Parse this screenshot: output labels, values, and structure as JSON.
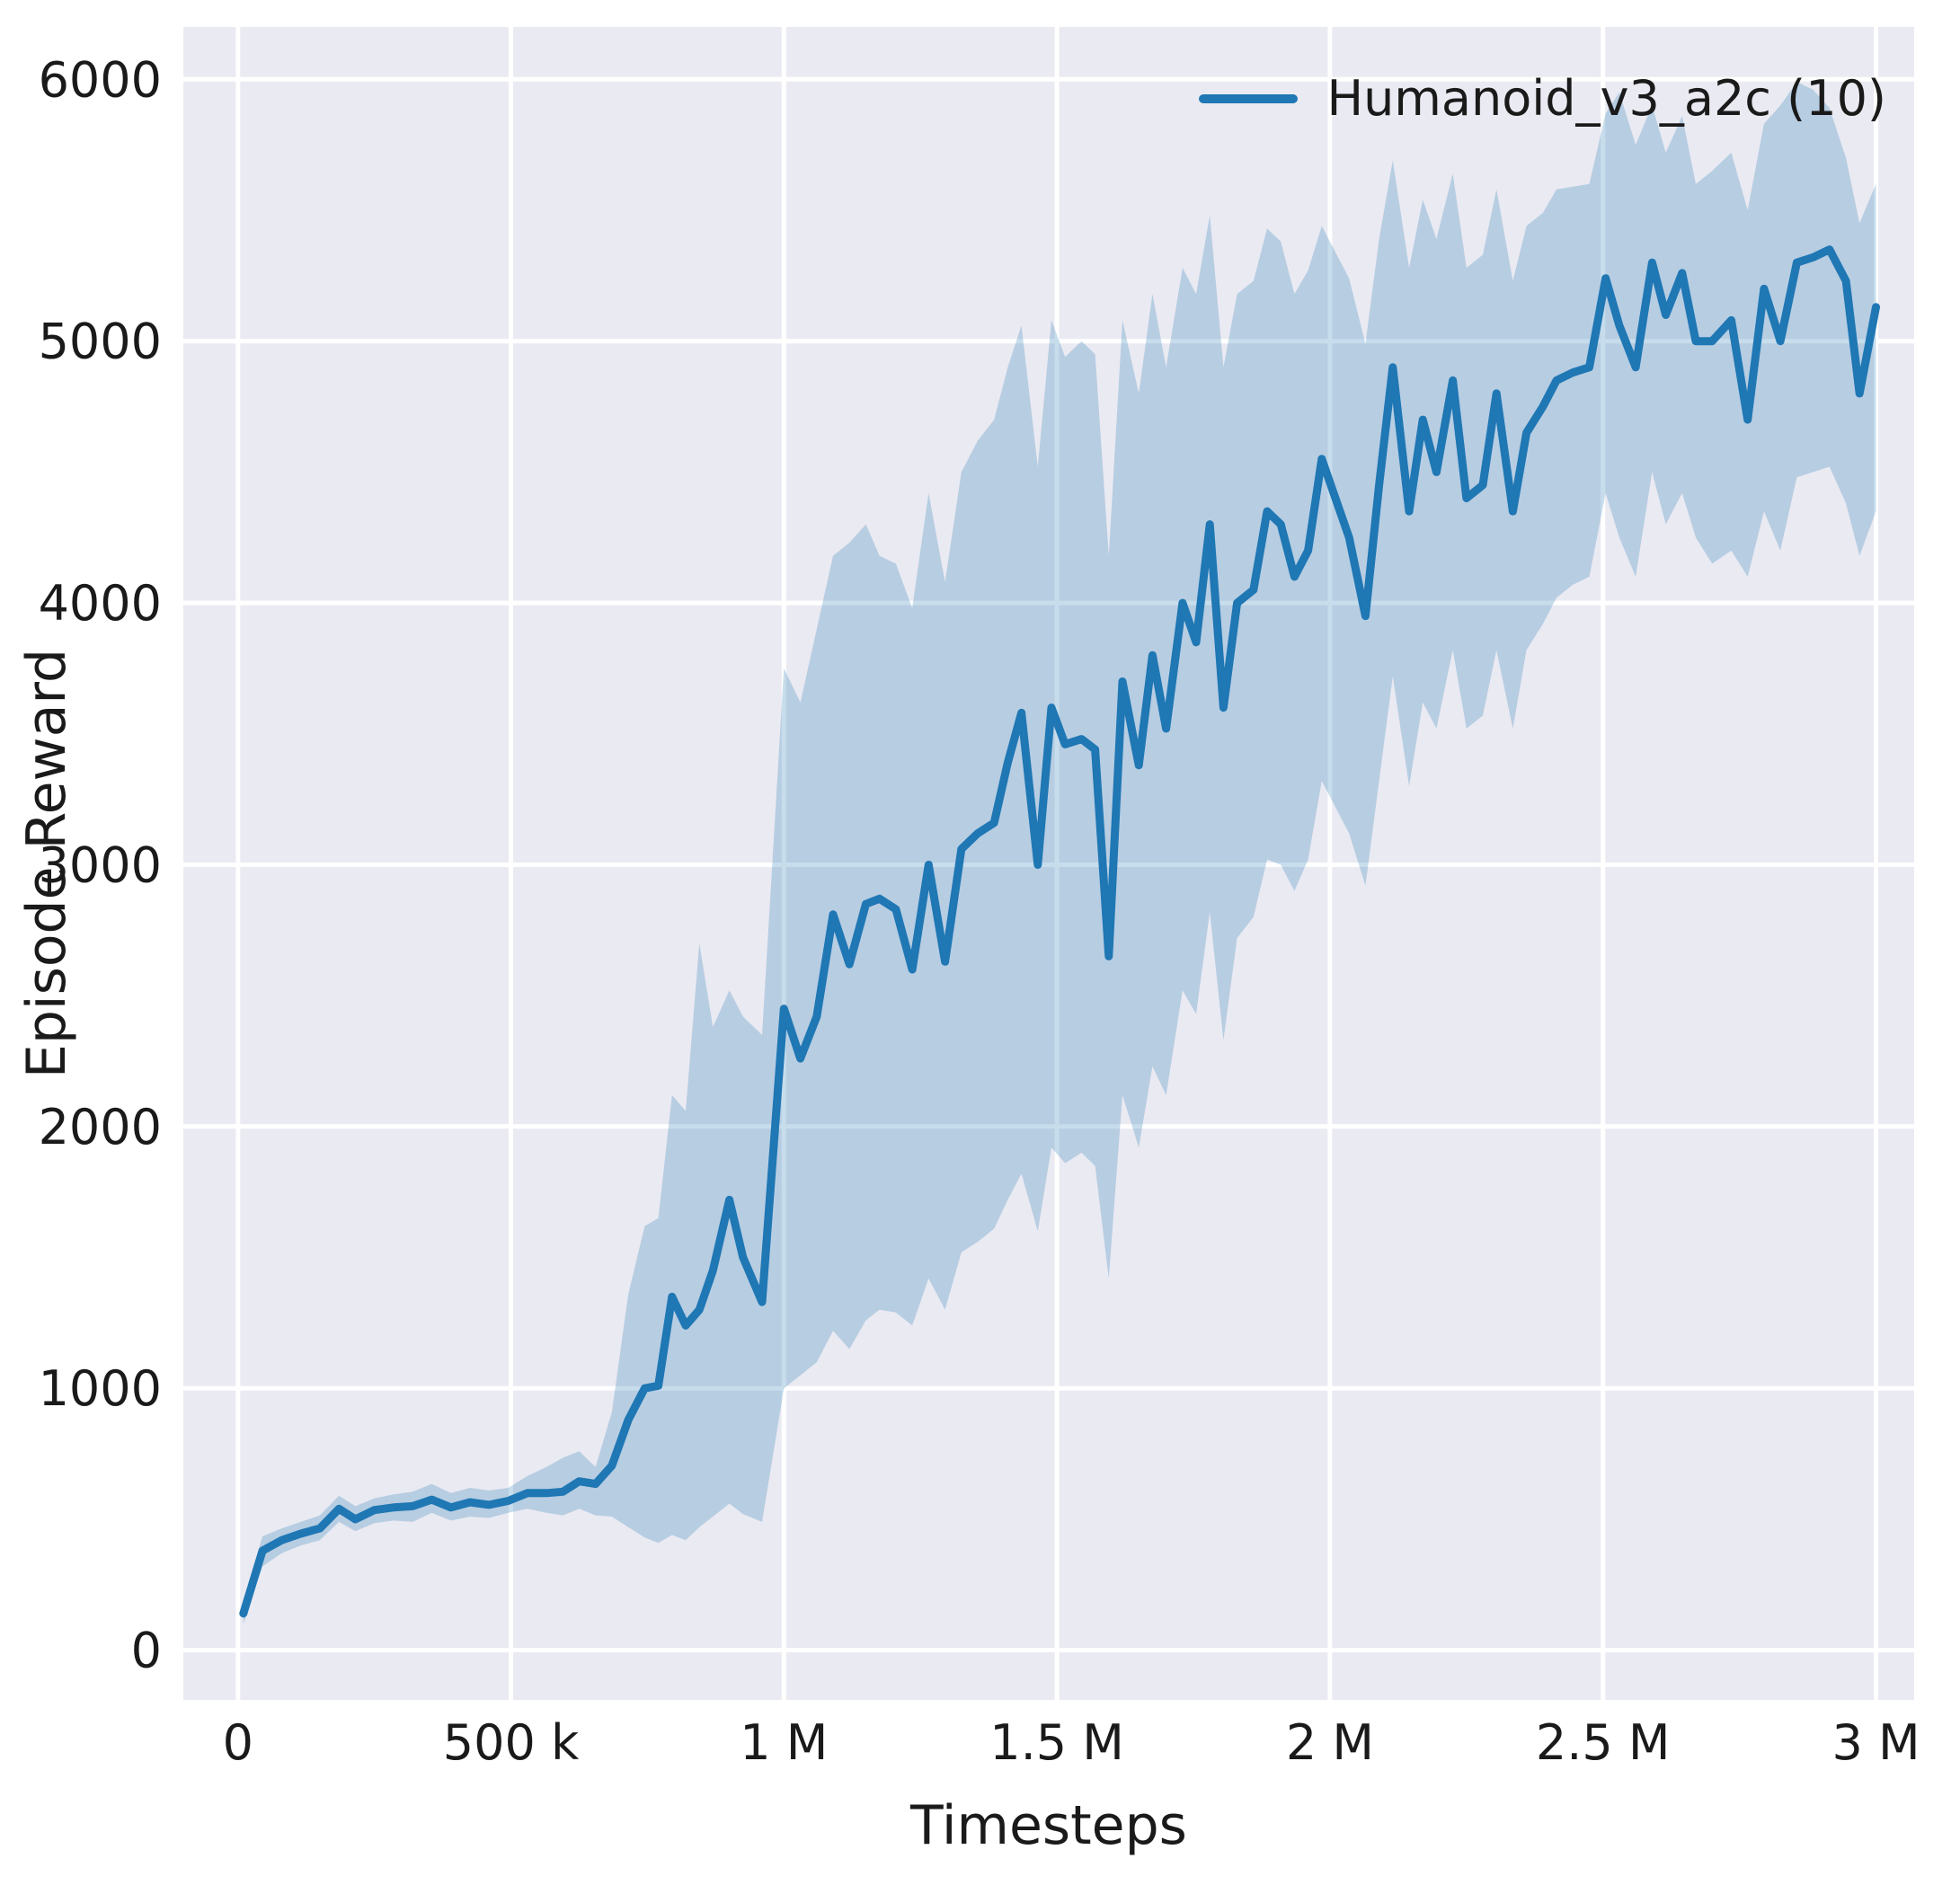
{
  "figure": {
    "background": "#ffffff",
    "plot_bg": "#eaeaf2",
    "grid_color": "#ffffff",
    "line_color": "#1f77b4",
    "band_color": "#1f77b4",
    "band_opacity": 0.25,
    "text_color": "#1a1a1a"
  },
  "chart_data": {
    "type": "line",
    "title": "",
    "xlabel": "Timesteps",
    "ylabel": "Episode Reward",
    "grid": true,
    "legend_position": "upper right",
    "legend": [
      {
        "label": "Humanoid_v3_a2c (10)",
        "color": "#1f77b4"
      }
    ],
    "xlim": [
      -100000,
      3070000
    ],
    "ylim": [
      -190,
      6200
    ],
    "x_ticks": {
      "values": [
        0,
        500000,
        1000000,
        1500000,
        2000000,
        2500000,
        3000000
      ],
      "labels": [
        "0",
        "500 k",
        "1 M",
        "1.5 M",
        "2 M",
        "2.5 M",
        "3 M"
      ]
    },
    "y_ticks": {
      "values": [
        0,
        1000,
        2000,
        3000,
        4000,
        5000,
        6000
      ],
      "labels": [
        "0",
        "1000",
        "2000",
        "3000",
        "4000",
        "5000",
        "6000"
      ]
    },
    "series": [
      {
        "name": "Humanoid_v3_a2c (10)",
        "point_format": [
          "x",
          "mean",
          "band_low",
          "band_high"
        ],
        "points": [
          [
            10000,
            140,
            100,
            190
          ],
          [
            45000,
            380,
            320,
            435
          ],
          [
            80000,
            420,
            370,
            465
          ],
          [
            115000,
            445,
            400,
            490
          ],
          [
            150000,
            465,
            420,
            515
          ],
          [
            185000,
            540,
            490,
            590
          ],
          [
            215000,
            500,
            455,
            550
          ],
          [
            250000,
            535,
            485,
            580
          ],
          [
            285000,
            545,
            495,
            595
          ],
          [
            320000,
            550,
            490,
            605
          ],
          [
            355000,
            575,
            525,
            635
          ],
          [
            390000,
            545,
            495,
            600
          ],
          [
            425000,
            565,
            510,
            620
          ],
          [
            460000,
            555,
            505,
            610
          ],
          [
            495000,
            570,
            525,
            620
          ],
          [
            530000,
            600,
            540,
            665
          ],
          [
            565000,
            600,
            525,
            700
          ],
          [
            595000,
            605,
            515,
            735
          ],
          [
            625000,
            645,
            540,
            760
          ],
          [
            655000,
            635,
            515,
            700
          ],
          [
            685000,
            705,
            510,
            910
          ],
          [
            715000,
            880,
            470,
            1360
          ],
          [
            745000,
            1000,
            430,
            1620
          ],
          [
            770000,
            1010,
            410,
            1650
          ],
          [
            795000,
            1350,
            440,
            2120
          ],
          [
            820000,
            1240,
            420,
            2060
          ],
          [
            845000,
            1300,
            470,
            2700
          ],
          [
            870000,
            1450,
            510,
            2380
          ],
          [
            900000,
            1720,
            560,
            2520
          ],
          [
            925000,
            1500,
            520,
            2420
          ],
          [
            960000,
            1330,
            490,
            2350
          ],
          [
            1000000,
            2450,
            1000,
            3750
          ],
          [
            1030000,
            2260,
            1050,
            3620
          ],
          [
            1060000,
            2420,
            1100,
            3900
          ],
          [
            1090000,
            2810,
            1220,
            4180
          ],
          [
            1120000,
            2620,
            1150,
            4230
          ],
          [
            1150000,
            2850,
            1260,
            4300
          ],
          [
            1175000,
            2870,
            1300,
            4180
          ],
          [
            1205000,
            2830,
            1290,
            4150
          ],
          [
            1235000,
            2600,
            1240,
            3980
          ],
          [
            1265000,
            3000,
            1420,
            4420
          ],
          [
            1295000,
            2630,
            1300,
            4080
          ],
          [
            1325000,
            3060,
            1520,
            4500
          ],
          [
            1355000,
            3120,
            1560,
            4620
          ],
          [
            1385000,
            3160,
            1610,
            4700
          ],
          [
            1410000,
            3390,
            1720,
            4900
          ],
          [
            1435000,
            3580,
            1820,
            5060
          ],
          [
            1465000,
            3000,
            1600,
            4520
          ],
          [
            1490000,
            3600,
            1920,
            5080
          ],
          [
            1515000,
            3460,
            1860,
            4940
          ],
          [
            1545000,
            3480,
            1900,
            5000
          ],
          [
            1570000,
            3440,
            1850,
            4950
          ],
          [
            1595000,
            2650,
            1420,
            4180
          ],
          [
            1620000,
            3700,
            2120,
            5080
          ],
          [
            1650000,
            3380,
            1920,
            4800
          ],
          [
            1675000,
            3800,
            2230,
            5180
          ],
          [
            1700000,
            3520,
            2120,
            4900
          ],
          [
            1730000,
            4000,
            2520,
            5280
          ],
          [
            1755000,
            3850,
            2430,
            5180
          ],
          [
            1780000,
            4300,
            2820,
            5480
          ],
          [
            1805000,
            3600,
            2330,
            4900
          ],
          [
            1830000,
            4000,
            2720,
            5180
          ],
          [
            1860000,
            4050,
            2800,
            5230
          ],
          [
            1885000,
            4350,
            3020,
            5430
          ],
          [
            1910000,
            4300,
            3000,
            5380
          ],
          [
            1935000,
            4100,
            2900,
            5180
          ],
          [
            1960000,
            4200,
            3020,
            5270
          ],
          [
            1985000,
            4550,
            3320,
            5440
          ],
          [
            2010000,
            4400,
            3220,
            5340
          ],
          [
            2035000,
            4250,
            3120,
            5240
          ],
          [
            2065000,
            3950,
            2920,
            4990
          ],
          [
            2090000,
            4450,
            3320,
            5390
          ],
          [
            2115000,
            4900,
            3720,
            5690
          ],
          [
            2145000,
            4350,
            3300,
            5280
          ],
          [
            2170000,
            4700,
            3620,
            5540
          ],
          [
            2195000,
            4500,
            3520,
            5390
          ],
          [
            2225000,
            4850,
            3820,
            5640
          ],
          [
            2250000,
            4400,
            3520,
            5280
          ],
          [
            2280000,
            4450,
            3570,
            5330
          ],
          [
            2305000,
            4800,
            3820,
            5580
          ],
          [
            2335000,
            4350,
            3520,
            5230
          ],
          [
            2360000,
            4650,
            3820,
            5440
          ],
          [
            2390000,
            4750,
            3920,
            5490
          ],
          [
            2415000,
            4850,
            4020,
            5580
          ],
          [
            2445000,
            4880,
            4070,
            5590
          ],
          [
            2475000,
            4900,
            4100,
            5600
          ],
          [
            2505000,
            5240,
            4420,
            5870
          ],
          [
            2530000,
            5060,
            4250,
            5950
          ],
          [
            2560000,
            4900,
            4100,
            5750
          ],
          [
            2590000,
            5300,
            4500,
            5900
          ],
          [
            2615000,
            5100,
            4300,
            5720
          ],
          [
            2645000,
            5260,
            4420,
            5860
          ],
          [
            2670000,
            5000,
            4250,
            5600
          ],
          [
            2700000,
            5000,
            4150,
            5650
          ],
          [
            2735000,
            5080,
            4200,
            5720
          ],
          [
            2765000,
            4700,
            4100,
            5500
          ],
          [
            2795000,
            5200,
            4350,
            5830
          ],
          [
            2825000,
            5000,
            4200,
            5900
          ],
          [
            2855000,
            5300,
            4480,
            5990
          ],
          [
            2885000,
            5320,
            4500,
            5960
          ],
          [
            2915000,
            5350,
            4520,
            5890
          ],
          [
            2945000,
            5230,
            4380,
            5700
          ],
          [
            2970000,
            4800,
            4180,
            5450
          ],
          [
            3000000,
            5130,
            4350,
            5600
          ]
        ]
      }
    ]
  }
}
